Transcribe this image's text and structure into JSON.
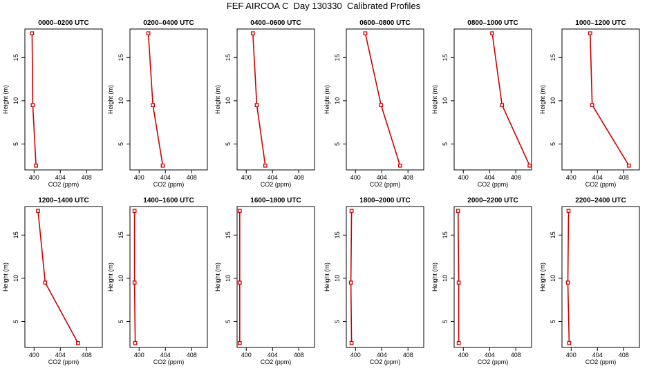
{
  "title": "FEF AIRCOA C  Day 130330  Calibrated Profiles",
  "colors": {
    "line": "#cc0000",
    "marker": "#cc0000",
    "axis": "#000000"
  },
  "chart_data": [
    {
      "type": "line",
      "title": "0000–0200 UTC",
      "xlabel": "CO2 (ppm)",
      "ylabel": "Height (m)",
      "xlim": [
        398.6,
        410.4
      ],
      "ylim": [
        2,
        18.3
      ],
      "xticks": [
        400,
        404,
        408
      ],
      "yticks": [
        5,
        10,
        15
      ],
      "x": [
        400.3,
        399.8,
        399.7
      ],
      "y": [
        2.5,
        9.5,
        17.8
      ]
    },
    {
      "type": "line",
      "title": "0200–0400 UTC",
      "xlabel": "CO2 (ppm)",
      "ylabel": "Height (m)",
      "xlim": [
        398.6,
        410.4
      ],
      "ylim": [
        2,
        18.3
      ],
      "xticks": [
        400,
        404,
        408
      ],
      "yticks": [
        5,
        10,
        15
      ],
      "x": [
        403.6,
        402.1,
        401.4
      ],
      "y": [
        2.5,
        9.5,
        17.8
      ]
    },
    {
      "type": "line",
      "title": "0400–0600 UTC",
      "xlabel": "CO2 (ppm)",
      "ylabel": "Height (m)",
      "xlim": [
        398.6,
        410.4
      ],
      "ylim": [
        2,
        18.3
      ],
      "xticks": [
        400,
        404,
        408
      ],
      "yticks": [
        5,
        10,
        15
      ],
      "x": [
        402.9,
        401.6,
        401.0
      ],
      "y": [
        2.5,
        9.5,
        17.8
      ]
    },
    {
      "type": "line",
      "title": "0600–0800 UTC",
      "xlabel": "CO2 (ppm)",
      "ylabel": "Height (m)",
      "xlim": [
        398.6,
        410.4
      ],
      "ylim": [
        2,
        18.3
      ],
      "xticks": [
        400,
        404,
        408
      ],
      "yticks": [
        5,
        10,
        15
      ],
      "x": [
        406.8,
        403.9,
        401.5
      ],
      "y": [
        2.5,
        9.5,
        17.8
      ]
    },
    {
      "type": "line",
      "title": "0800–1000 UTC",
      "xlabel": "CO2 (ppm)",
      "ylabel": "Height (m)",
      "xlim": [
        398.6,
        410.4
      ],
      "ylim": [
        2,
        18.3
      ],
      "xticks": [
        400,
        404,
        408
      ],
      "yticks": [
        5,
        10,
        15
      ],
      "x": [
        410.1,
        405.9,
        404.4
      ],
      "y": [
        2.5,
        9.5,
        17.8
      ]
    },
    {
      "type": "line",
      "title": "1000–1200 UTC",
      "xlabel": "CO2 (ppm)",
      "ylabel": "Height (m)",
      "xlim": [
        398.6,
        410.4
      ],
      "ylim": [
        2,
        18.3
      ],
      "xticks": [
        400,
        404,
        408
      ],
      "yticks": [
        5,
        10,
        15
      ],
      "x": [
        408.8,
        403.2,
        402.9
      ],
      "y": [
        2.5,
        9.5,
        17.8
      ]
    },
    {
      "type": "line",
      "title": "1200–1400 UTC",
      "xlabel": "CO2 (ppm)",
      "ylabel": "Height (m)",
      "xlim": [
        398.6,
        410.4
      ],
      "ylim": [
        2,
        18.3
      ],
      "xticks": [
        400,
        404,
        408
      ],
      "yticks": [
        5,
        10,
        15
      ],
      "x": [
        406.7,
        401.7,
        400.6
      ],
      "y": [
        2.5,
        9.5,
        17.8
      ]
    },
    {
      "type": "line",
      "title": "1400–1600 UTC",
      "xlabel": "CO2 (ppm)",
      "ylabel": "Height (m)",
      "xlim": [
        398.6,
        410.4
      ],
      "ylim": [
        2,
        18.3
      ],
      "xticks": [
        400,
        404,
        408
      ],
      "yticks": [
        5,
        10,
        15
      ],
      "x": [
        399.4,
        399.3,
        399.3
      ],
      "y": [
        2.5,
        9.5,
        17.8
      ]
    },
    {
      "type": "line",
      "title": "1600–1800 UTC",
      "xlabel": "CO2 (ppm)",
      "ylabel": "Height (m)",
      "xlim": [
        398.6,
        410.4
      ],
      "ylim": [
        2,
        18.3
      ],
      "xticks": [
        400,
        404,
        408
      ],
      "yticks": [
        5,
        10,
        15
      ],
      "x": [
        399.0,
        399.0,
        399.0
      ],
      "y": [
        2.5,
        9.5,
        17.8
      ]
    },
    {
      "type": "line",
      "title": "1800–2000 UTC",
      "xlabel": "CO2 (ppm)",
      "ylabel": "Height (m)",
      "xlim": [
        398.6,
        410.4
      ],
      "ylim": [
        2,
        18.3
      ],
      "xticks": [
        400,
        404,
        408
      ],
      "yticks": [
        5,
        10,
        15
      ],
      "x": [
        399.4,
        399.3,
        399.4
      ],
      "y": [
        2.5,
        9.5,
        17.8
      ]
    },
    {
      "type": "line",
      "title": "2000–2200 UTC",
      "xlabel": "CO2 (ppm)",
      "ylabel": "Height (m)",
      "xlim": [
        398.6,
        410.4
      ],
      "ylim": [
        2,
        18.3
      ],
      "xticks": [
        400,
        404,
        408
      ],
      "yticks": [
        5,
        10,
        15
      ],
      "x": [
        399.3,
        399.3,
        399.2
      ],
      "y": [
        2.5,
        9.5,
        17.8
      ]
    },
    {
      "type": "line",
      "title": "2200–2400 UTC",
      "xlabel": "CO2 (ppm)",
      "ylabel": "Height (m)",
      "xlim": [
        398.6,
        410.4
      ],
      "ylim": [
        2,
        18.3
      ],
      "xticks": [
        400,
        404,
        408
      ],
      "yticks": [
        5,
        10,
        15
      ],
      "x": [
        399.7,
        399.5,
        399.6
      ],
      "y": [
        2.5,
        9.5,
        17.8
      ]
    }
  ]
}
